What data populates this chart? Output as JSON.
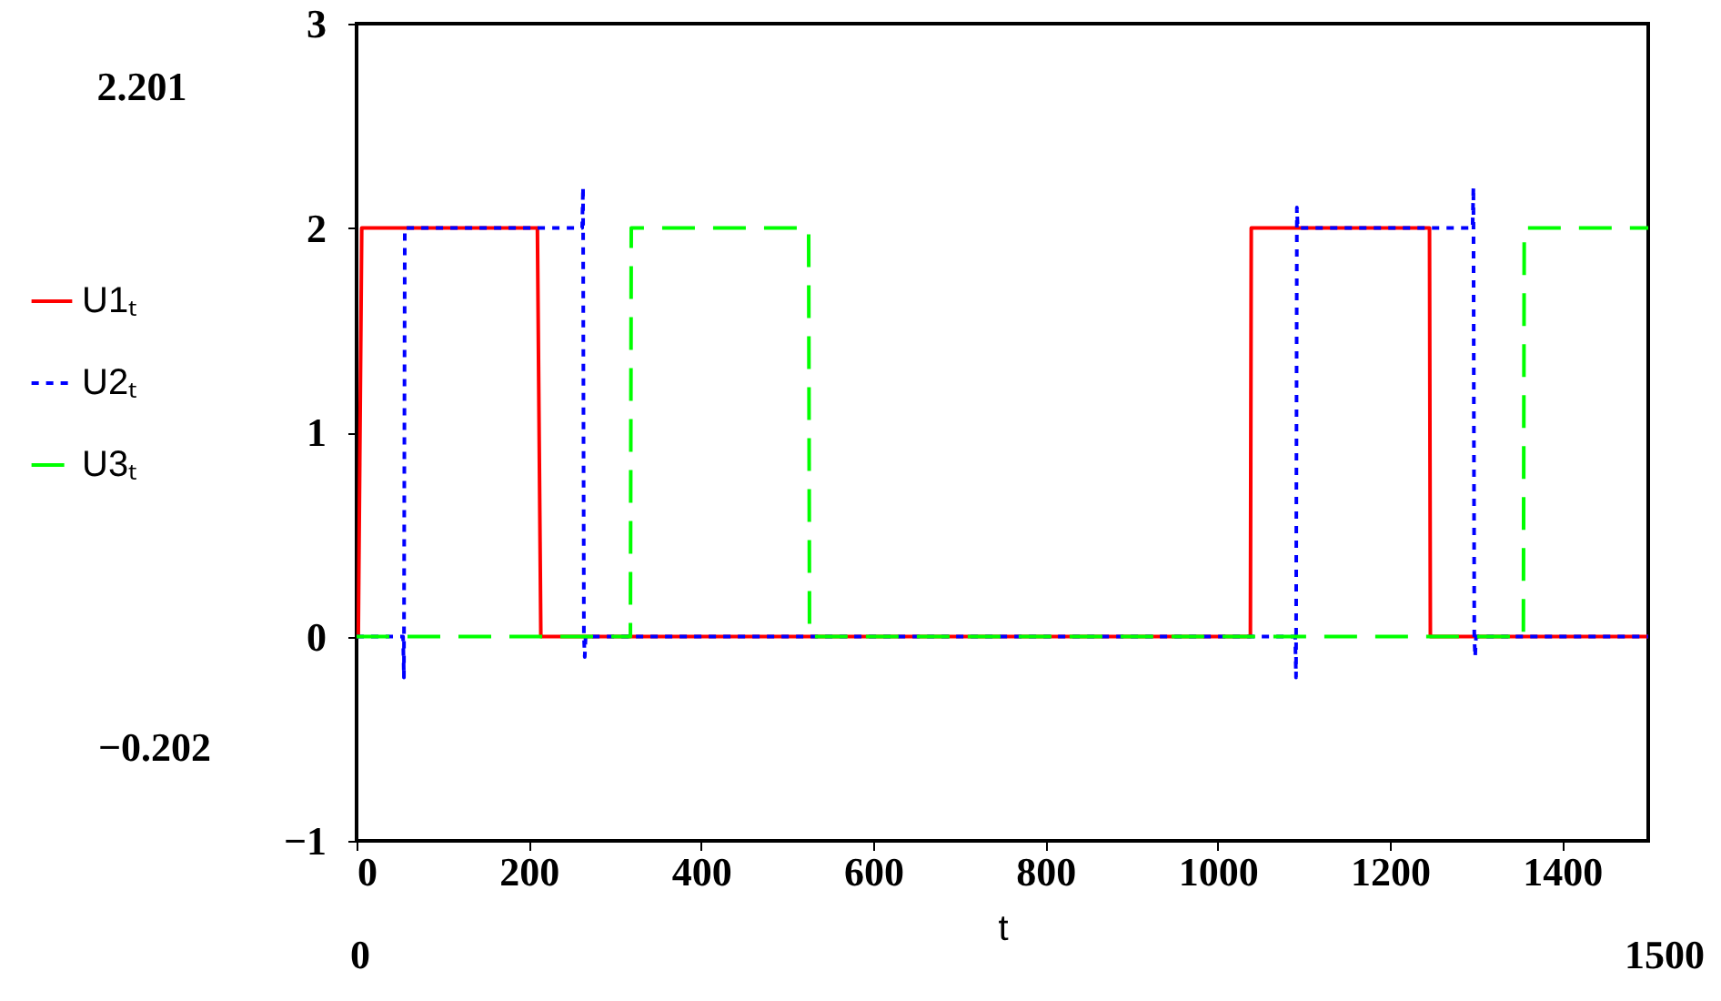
{
  "chart_data": {
    "type": "line",
    "xlabel": "t",
    "xlim": [
      0,
      1500
    ],
    "xticks": [
      0,
      200,
      400,
      600,
      800,
      1000,
      1200,
      1400
    ],
    "ylim": [
      -1,
      3
    ],
    "yticks": [
      -1,
      0,
      1,
      2,
      3
    ],
    "grid": false,
    "legend": "left",
    "marker": "none",
    "annotations": [
      "2.201",
      "−0.202",
      "0",
      "1500"
    ],
    "series": [
      {
        "name": "U1ₜ",
        "color": "#ff0000",
        "line_style": "solid",
        "x": [
          0,
          2,
          6,
          210,
          214,
          1038,
          1039,
          1246,
          1247,
          1500
        ],
        "values": [
          0,
          0,
          2,
          2,
          0,
          0,
          2,
          2,
          0,
          0
        ]
      },
      {
        "name": "U2ₜ",
        "color": "#0000ff",
        "line_style": "dotted",
        "x": [
          0,
          54,
          55,
          56,
          262,
          263,
          264,
          265,
          266,
          1090,
          1091,
          1092,
          1093,
          1296,
          1297,
          1298,
          1299,
          1300,
          1500
        ],
        "values": [
          0,
          0,
          -0.2,
          2,
          2,
          2.2,
          0,
          -0.1,
          0,
          0,
          -0.2,
          2.1,
          2,
          2,
          2.2,
          0,
          -0.1,
          0,
          0
        ]
      },
      {
        "name": "U3ₜ",
        "color": "#00ff00",
        "line_style": "dashed",
        "x": [
          0,
          318,
          319,
          525,
          526,
          1355,
          1356,
          1500
        ],
        "values": [
          0,
          0,
          2,
          2,
          0,
          0,
          2,
          2
        ]
      }
    ]
  }
}
